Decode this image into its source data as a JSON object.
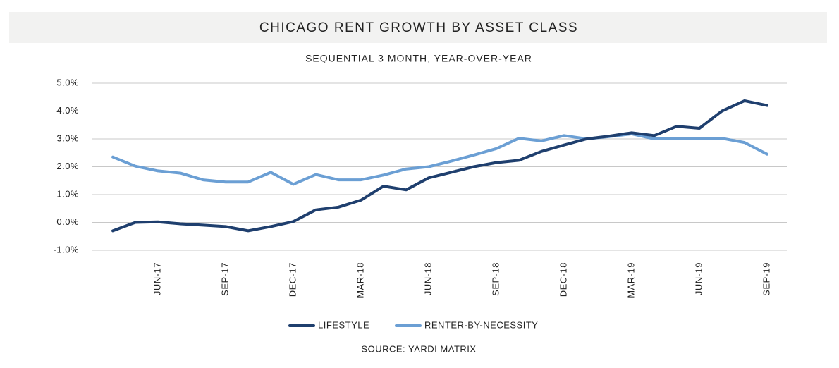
{
  "chart_data": {
    "type": "line",
    "title": "CHICAGO RENT GROWTH BY ASSET CLASS",
    "subtitle": "SEQUENTIAL 3 MONTH, YEAR-OVER-YEAR",
    "source": "SOURCE: YARDI MATRIX",
    "categories": [
      null,
      null,
      "JUN-17",
      null,
      null,
      "SEP-17",
      null,
      null,
      "DEC-17",
      null,
      null,
      "MAR-18",
      null,
      null,
      "JUN-18",
      null,
      null,
      "SEP-18",
      null,
      null,
      "DEC-18",
      null,
      null,
      "MAR-19",
      null,
      null,
      "JUN-19",
      null,
      null,
      "SEP-19"
    ],
    "series": [
      {
        "name": "LIFESTYLE",
        "color": "#1f3f6e",
        "values": [
          -0.3,
          0.0,
          0.02,
          -0.05,
          -0.1,
          -0.15,
          -0.3,
          -0.15,
          0.03,
          0.45,
          0.55,
          0.8,
          1.3,
          1.17,
          1.6,
          1.8,
          2.0,
          2.15,
          2.23,
          2.55,
          2.78,
          3.0,
          3.1,
          3.22,
          3.12,
          3.45,
          3.38,
          4.0,
          4.37,
          4.2
        ]
      },
      {
        "name": "RENTER-BY-NECESSITY",
        "color": "#6b9fd4",
        "values": [
          2.35,
          2.02,
          1.85,
          1.77,
          1.53,
          1.45,
          1.45,
          1.8,
          1.37,
          1.72,
          1.53,
          1.53,
          1.7,
          1.92,
          2.0,
          2.2,
          2.42,
          2.65,
          3.02,
          2.93,
          3.12,
          3.0,
          3.08,
          3.18,
          3.0,
          3.0,
          3.0,
          3.02,
          2.87,
          2.45
        ]
      }
    ],
    "ylim": [
      -1,
      5
    ],
    "yticks": [
      {
        "value": -1,
        "label": "-1.0%"
      },
      {
        "value": 0,
        "label": "0.0%"
      },
      {
        "value": 1,
        "label": "1.0%"
      },
      {
        "value": 2,
        "label": "2.0%"
      },
      {
        "value": 3,
        "label": "3.0%"
      },
      {
        "value": 4,
        "label": "4.0%"
      },
      {
        "value": 5,
        "label": "5.0%"
      }
    ],
    "grid": true,
    "legend": "bottom"
  }
}
